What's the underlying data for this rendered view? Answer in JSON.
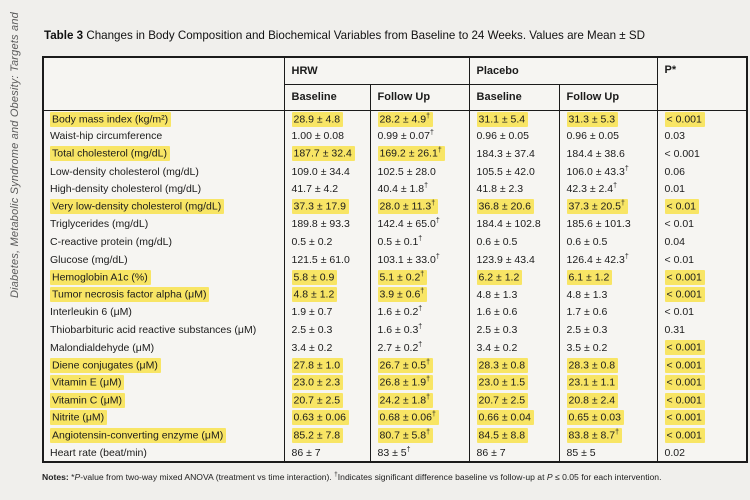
{
  "journal": {
    "sidebar_text": "Diabetes, Metabolic Syndrome and Obesity: Targets and"
  },
  "title": {
    "label": "Table 3",
    "text": "Changes in Body Composition and Biochemical Variables from Baseline to 24 Weeks. Values are Mean ± SD"
  },
  "table": {
    "groups": [
      {
        "label": "HRW"
      },
      {
        "label": "Placebo"
      }
    ],
    "p_header": "P*",
    "sub_headers": [
      "Baseline",
      "Follow Up",
      "Baseline",
      "Follow Up"
    ],
    "rows": [
      {
        "label": "Body mass index (kg/m²)",
        "hl_label": true,
        "cells": [
          "28.9 ± 4.8",
          "28.2 ± 4.9†",
          "31.1 ± 5.4",
          "31.3 ± 5.3",
          "< 0.001"
        ],
        "hl": [
          true,
          true,
          true,
          true,
          true
        ]
      },
      {
        "label": "Waist-hip circumference",
        "hl_label": false,
        "cells": [
          "1.00 ± 0.08",
          "0.99 ± 0.07†",
          "0.96 ± 0.05",
          "0.96 ± 0.05",
          "0.03"
        ],
        "hl": [
          false,
          false,
          false,
          false,
          false
        ]
      },
      {
        "label": "Total cholesterol (mg/dL)",
        "hl_label": true,
        "cells": [
          "187.7 ± 32.4",
          "169.2 ± 26.1†",
          "184.3 ± 37.4",
          "184.4 ± 38.6",
          "< 0.001"
        ],
        "hl": [
          true,
          true,
          false,
          false,
          false
        ]
      },
      {
        "label": "Low-density cholesterol (mg/dL)",
        "hl_label": false,
        "cells": [
          "109.0 ± 34.4",
          "102.5 ± 28.0",
          "105.5 ± 42.0",
          "106.0 ± 43.3†",
          "0.06"
        ],
        "hl": [
          false,
          false,
          false,
          false,
          false
        ]
      },
      {
        "label": "High-density cholesterol (mg/dL)",
        "hl_label": false,
        "cells": [
          "41.7 ± 4.2",
          "40.4 ± 1.8†",
          "41.8 ± 2.3",
          "42.3 ± 2.4†",
          "0.01"
        ],
        "hl": [
          false,
          false,
          false,
          false,
          false
        ]
      },
      {
        "label": "Very low-density cholesterol (mg/dL)",
        "hl_label": true,
        "cells": [
          "37.3 ± 17.9",
          "28.0 ± 11.3†",
          "36.8 ± 20.6",
          "37.3 ± 20.5†",
          "< 0.01"
        ],
        "hl": [
          true,
          true,
          true,
          true,
          true
        ]
      },
      {
        "label": "Triglycerides (mg/dL)",
        "hl_label": false,
        "cells": [
          "189.8 ± 93.3",
          "142.4 ± 65.0†",
          "184.4 ± 102.8",
          "185.6 ± 101.3",
          "< 0.01"
        ],
        "hl": [
          false,
          false,
          false,
          false,
          false
        ]
      },
      {
        "label": "C-reactive protein (mg/dL)",
        "hl_label": false,
        "cells": [
          "0.5 ± 0.2",
          "0.5 ± 0.1†",
          "0.6 ± 0.5",
          "0.6 ± 0.5",
          "0.04"
        ],
        "hl": [
          false,
          false,
          false,
          false,
          false
        ]
      },
      {
        "label": "Glucose (mg/dL)",
        "hl_label": false,
        "cells": [
          "121.5 ± 61.0",
          "103.1 ± 33.0†",
          "123.9 ± 43.4",
          "126.4 ± 42.3†",
          "< 0.01"
        ],
        "hl": [
          false,
          false,
          false,
          false,
          false
        ]
      },
      {
        "label": "Hemoglobin A1c (%)",
        "hl_label": true,
        "cells": [
          "5.8 ± 0.9",
          "5.1 ± 0.2†",
          "6.2 ± 1.2",
          "6.1 ± 1.2",
          "< 0.001"
        ],
        "hl": [
          true,
          true,
          true,
          true,
          true
        ]
      },
      {
        "label": "Tumor necrosis factor alpha (μM)",
        "hl_label": true,
        "cells": [
          "4.8 ± 1.2",
          "3.9 ± 0.6†",
          "4.8 ± 1.3",
          "4.8 ± 1.3",
          "< 0.001"
        ],
        "hl": [
          true,
          true,
          false,
          false,
          true
        ]
      },
      {
        "label": "Interleukin 6 (μM)",
        "hl_label": false,
        "cells": [
          "1.9 ± 0.7",
          "1.6 ± 0.2†",
          "1.6 ± 0.6",
          "1.7 ± 0.6",
          "< 0.01"
        ],
        "hl": [
          false,
          false,
          false,
          false,
          false
        ]
      },
      {
        "label": "Thiobarbituric acid reactive substances (μM)",
        "hl_label": false,
        "cells": [
          "2.5 ± 0.3",
          "1.6 ± 0.3†",
          "2.5 ± 0.3",
          "2.5 ± 0.3",
          "0.31"
        ],
        "hl": [
          false,
          false,
          false,
          false,
          false
        ]
      },
      {
        "label": "Malondialdehyde (μM)",
        "hl_label": false,
        "cells": [
          "3.4 ± 0.2",
          "2.7 ± 0.2†",
          "3.4 ± 0.2",
          "3.5 ± 0.2",
          "< 0.001"
        ],
        "hl": [
          false,
          false,
          false,
          false,
          true
        ]
      },
      {
        "label": "Diene conjugates (μM)",
        "hl_label": true,
        "cells": [
          "27.8 ± 1.0",
          "26.7 ± 0.5†",
          "28.3 ± 0.8",
          "28.3 ± 0.8",
          "< 0.001"
        ],
        "hl": [
          true,
          true,
          true,
          true,
          true
        ]
      },
      {
        "label": "Vitamin E (μM)",
        "hl_label": true,
        "cells": [
          "23.0 ± 2.3",
          "26.8 ± 1.9†",
          "23.0 ± 1.5",
          "23.1 ± 1.1",
          "< 0.001"
        ],
        "hl": [
          true,
          true,
          true,
          true,
          true
        ]
      },
      {
        "label": "Vitamin C (μM)",
        "hl_label": true,
        "cells": [
          "20.7 ± 2.5",
          "24.2 ± 1.8†",
          "20.7 ± 2.5",
          "20.8 ± 2.4",
          "< 0.001"
        ],
        "hl": [
          true,
          true,
          true,
          true,
          true
        ]
      },
      {
        "label": "Nitrite (μM)",
        "hl_label": true,
        "cells": [
          "0.63 ± 0.06",
          "0.68 ± 0.06†",
          "0.66 ± 0.04",
          "0.65 ± 0.03",
          "< 0.001"
        ],
        "hl": [
          true,
          true,
          true,
          true,
          true
        ]
      },
      {
        "label": "Angiotensin-converting enzyme (μM)",
        "hl_label": true,
        "cells": [
          "85.2 ± 7.8",
          "80.7 ± 5.8†",
          "84.5 ± 8.8",
          "83.8 ± 8.7†",
          "< 0.001"
        ],
        "hl": [
          true,
          true,
          true,
          true,
          true
        ]
      },
      {
        "label": "Heart rate (beat/min)",
        "hl_label": false,
        "cells": [
          "86 ± 7",
          "83 ± 5†",
          "86 ± 7",
          "85 ± 5",
          "0.02"
        ],
        "hl": [
          false,
          false,
          false,
          false,
          false
        ]
      }
    ]
  },
  "notes": {
    "label": "Notes:",
    "star": "*",
    "p_italic_1": "P",
    "part1": "-value from two-way mixed ANOVA (treatment vs time interaction). ",
    "dagger": "†",
    "part2": "Indicates significant difference baseline vs follow-up at ",
    "p_italic_2": "P",
    "part3": " ≤ 0.05 for each intervention."
  },
  "colors": {
    "highlight": "#f8e565",
    "border": "#1b1b1b",
    "background": "#f0efec",
    "table_background": "#f6f5f2",
    "text": "#1b1b1b",
    "sidebar_text": "#5a5a5a"
  }
}
